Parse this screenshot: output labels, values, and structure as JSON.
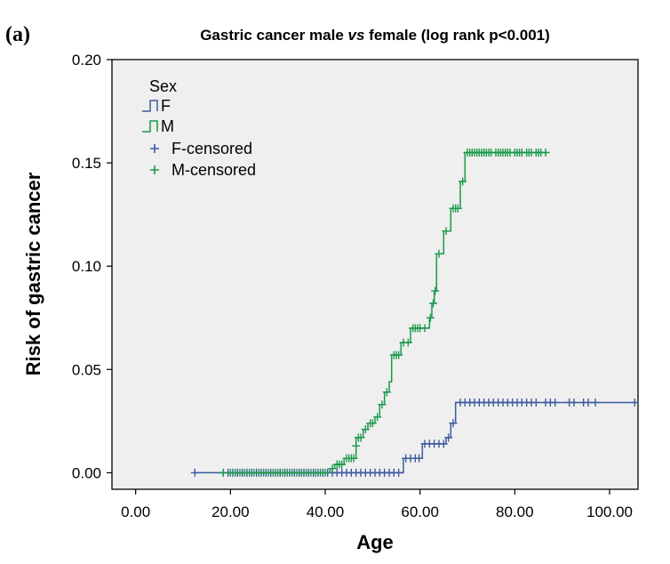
{
  "panel_label": "(a)",
  "chart_data": {
    "type": "line",
    "title": "Gastric cancer male vs female (log rank p<0.001)",
    "title_parts": {
      "pre": "Gastric cancer male ",
      "italic": "vs",
      "post": " female (log rank p<0.001)"
    },
    "xlabel": "Age",
    "ylabel": "Risk of gastric cancer",
    "xlim": [
      -5,
      106
    ],
    "ylim": [
      -0.008,
      0.2
    ],
    "xticks": [
      0,
      20,
      40,
      60,
      80,
      100
    ],
    "xtick_labels": [
      "0.00",
      "20.00",
      "40.00",
      "60.00",
      "80.00",
      "100.00"
    ],
    "yticks": [
      0,
      0.05,
      0.1,
      0.15,
      0.2
    ],
    "ytick_labels": [
      "0.00",
      "0.05",
      "0.10",
      "0.15",
      "0.20"
    ],
    "grid": false,
    "legend": {
      "title": "Sex",
      "position": "top-left",
      "entries": [
        "F",
        "M",
        "F-censored",
        "M-censored"
      ]
    },
    "series": [
      {
        "name": "F",
        "color": "#3b5aa0",
        "step_points": [
          [
            12.5,
            0.0
          ],
          [
            56.5,
            0.0
          ],
          [
            56.5,
            0.007
          ],
          [
            60.5,
            0.007
          ],
          [
            60.5,
            0.014
          ],
          [
            65.5,
            0.014
          ],
          [
            65.5,
            0.017
          ],
          [
            66.5,
            0.017
          ],
          [
            66.5,
            0.024
          ],
          [
            67.5,
            0.024
          ],
          [
            67.5,
            0.034
          ],
          [
            106,
            0.034
          ]
        ],
        "censored": [
          [
            12.5,
            0.0
          ],
          [
            18.5,
            0.0
          ],
          [
            19.5,
            0.0
          ],
          [
            20.5,
            0.0
          ],
          [
            21.5,
            0.0
          ],
          [
            22.5,
            0.0
          ],
          [
            23.5,
            0.0
          ],
          [
            24.5,
            0.0
          ],
          [
            25.5,
            0.0
          ],
          [
            26.5,
            0.0
          ],
          [
            27.5,
            0.0
          ],
          [
            28.5,
            0.0
          ],
          [
            29.5,
            0.0
          ],
          [
            30.5,
            0.0
          ],
          [
            31.5,
            0.0
          ],
          [
            32.5,
            0.0
          ],
          [
            33.5,
            0.0
          ],
          [
            34.5,
            0.0
          ],
          [
            35.5,
            0.0
          ],
          [
            36.5,
            0.0
          ],
          [
            37.5,
            0.0
          ],
          [
            38.5,
            0.0
          ],
          [
            39.5,
            0.0
          ],
          [
            40.5,
            0.0
          ],
          [
            41.5,
            0.0
          ],
          [
            42.5,
            0.0
          ],
          [
            43.5,
            0.0
          ],
          [
            44.5,
            0.0
          ],
          [
            45.5,
            0.0
          ],
          [
            46.5,
            0.0
          ],
          [
            47.5,
            0.0
          ],
          [
            48.5,
            0.0
          ],
          [
            49.5,
            0.0
          ],
          [
            50.5,
            0.0
          ],
          [
            51.5,
            0.0
          ],
          [
            52.5,
            0.0
          ],
          [
            53.5,
            0.0
          ],
          [
            54.5,
            0.0
          ],
          [
            55.5,
            0.0
          ],
          [
            57.0,
            0.007
          ],
          [
            58.0,
            0.007
          ],
          [
            59.0,
            0.007
          ],
          [
            59.8,
            0.007
          ],
          [
            61.0,
            0.014
          ],
          [
            62.0,
            0.014
          ],
          [
            63.0,
            0.014
          ],
          [
            64.0,
            0.014
          ],
          [
            65.0,
            0.014
          ],
          [
            66.0,
            0.017
          ],
          [
            67.0,
            0.024
          ],
          [
            68.5,
            0.034
          ],
          [
            69.5,
            0.034
          ],
          [
            70.5,
            0.034
          ],
          [
            71.5,
            0.034
          ],
          [
            72.5,
            0.034
          ],
          [
            73.5,
            0.034
          ],
          [
            74.5,
            0.034
          ],
          [
            75.5,
            0.034
          ],
          [
            76.5,
            0.034
          ],
          [
            77.5,
            0.034
          ],
          [
            78.5,
            0.034
          ],
          [
            79.5,
            0.034
          ],
          [
            80.5,
            0.034
          ],
          [
            81.5,
            0.034
          ],
          [
            82.5,
            0.034
          ],
          [
            83.5,
            0.034
          ],
          [
            84.5,
            0.034
          ],
          [
            86.5,
            0.034
          ],
          [
            87.5,
            0.034
          ],
          [
            88.5,
            0.034
          ],
          [
            91.5,
            0.034
          ],
          [
            92.5,
            0.034
          ],
          [
            94.5,
            0.034
          ],
          [
            95.5,
            0.034
          ],
          [
            97.0,
            0.034
          ],
          [
            105.3,
            0.034
          ]
        ]
      },
      {
        "name": "M",
        "color": "#1a9a4a",
        "step_points": [
          [
            18.5,
            0.0
          ],
          [
            41.0,
            0.0
          ],
          [
            41.0,
            0.002
          ],
          [
            42.0,
            0.002
          ],
          [
            42.0,
            0.004
          ],
          [
            44.0,
            0.004
          ],
          [
            44.0,
            0.007
          ],
          [
            46.5,
            0.007
          ],
          [
            46.5,
            0.017
          ],
          [
            48.0,
            0.017
          ],
          [
            48.0,
            0.021
          ],
          [
            49.0,
            0.021
          ],
          [
            49.0,
            0.024
          ],
          [
            50.5,
            0.024
          ],
          [
            50.5,
            0.027
          ],
          [
            51.5,
            0.027
          ],
          [
            51.5,
            0.033
          ],
          [
            52.5,
            0.033
          ],
          [
            52.5,
            0.039
          ],
          [
            53.5,
            0.039
          ],
          [
            53.5,
            0.044
          ],
          [
            54.0,
            0.044
          ],
          [
            54.0,
            0.057
          ],
          [
            56.0,
            0.057
          ],
          [
            56.0,
            0.063
          ],
          [
            58.0,
            0.063
          ],
          [
            58.0,
            0.07
          ],
          [
            62.0,
            0.07
          ],
          [
            62.0,
            0.075
          ],
          [
            62.5,
            0.075
          ],
          [
            62.5,
            0.082
          ],
          [
            63.0,
            0.082
          ],
          [
            63.0,
            0.088
          ],
          [
            63.5,
            0.088
          ],
          [
            63.5,
            0.106
          ],
          [
            65.0,
            0.106
          ],
          [
            65.0,
            0.117
          ],
          [
            66.5,
            0.117
          ],
          [
            66.5,
            0.128
          ],
          [
            68.5,
            0.128
          ],
          [
            68.5,
            0.141
          ],
          [
            69.5,
            0.141
          ],
          [
            69.5,
            0.155
          ],
          [
            87,
            0.155
          ]
        ],
        "censored": [
          [
            18.5,
            0.0
          ],
          [
            20.0,
            0.0
          ],
          [
            21.0,
            0.0
          ],
          [
            22.0,
            0.0
          ],
          [
            23.0,
            0.0
          ],
          [
            24.0,
            0.0
          ],
          [
            25.0,
            0.0
          ],
          [
            26.0,
            0.0
          ],
          [
            27.0,
            0.0
          ],
          [
            28.0,
            0.0
          ],
          [
            29.0,
            0.0
          ],
          [
            30.0,
            0.0
          ],
          [
            31.0,
            0.0
          ],
          [
            32.0,
            0.0
          ],
          [
            33.0,
            0.0
          ],
          [
            34.0,
            0.0
          ],
          [
            35.0,
            0.0
          ],
          [
            36.0,
            0.0
          ],
          [
            37.0,
            0.0
          ],
          [
            38.0,
            0.0
          ],
          [
            39.0,
            0.0
          ],
          [
            40.0,
            0.0
          ],
          [
            41.5,
            0.002
          ],
          [
            42.5,
            0.004
          ],
          [
            43.0,
            0.004
          ],
          [
            43.5,
            0.004
          ],
          [
            44.5,
            0.007
          ],
          [
            45.0,
            0.007
          ],
          [
            45.5,
            0.007
          ],
          [
            46.0,
            0.007
          ],
          [
            46.5,
            0.013
          ],
          [
            47.0,
            0.017
          ],
          [
            47.5,
            0.017
          ],
          [
            48.5,
            0.021
          ],
          [
            49.5,
            0.024
          ],
          [
            50.0,
            0.024
          ],
          [
            51.0,
            0.027
          ],
          [
            52.0,
            0.033
          ],
          [
            53.0,
            0.039
          ],
          [
            54.5,
            0.057
          ],
          [
            55.0,
            0.057
          ],
          [
            55.5,
            0.057
          ],
          [
            56.5,
            0.063
          ],
          [
            57.5,
            0.063
          ],
          [
            58.5,
            0.07
          ],
          [
            59.0,
            0.07
          ],
          [
            59.5,
            0.07
          ],
          [
            60.0,
            0.07
          ],
          [
            61.0,
            0.07
          ],
          [
            62.2,
            0.075
          ],
          [
            62.8,
            0.082
          ],
          [
            63.2,
            0.088
          ],
          [
            64.0,
            0.106
          ],
          [
            65.5,
            0.117
          ],
          [
            67.0,
            0.128
          ],
          [
            67.5,
            0.128
          ],
          [
            68.0,
            0.128
          ],
          [
            69.0,
            0.141
          ],
          [
            70.0,
            0.155
          ],
          [
            70.5,
            0.155
          ],
          [
            71.0,
            0.155
          ],
          [
            71.5,
            0.155
          ],
          [
            72.0,
            0.155
          ],
          [
            72.5,
            0.155
          ],
          [
            73.0,
            0.155
          ],
          [
            73.5,
            0.155
          ],
          [
            74.0,
            0.155
          ],
          [
            74.5,
            0.155
          ],
          [
            75.0,
            0.155
          ],
          [
            76.0,
            0.155
          ],
          [
            76.5,
            0.155
          ],
          [
            77.0,
            0.155
          ],
          [
            77.5,
            0.155
          ],
          [
            78.0,
            0.155
          ],
          [
            78.5,
            0.155
          ],
          [
            79.0,
            0.155
          ],
          [
            80.0,
            0.155
          ],
          [
            80.5,
            0.155
          ],
          [
            81.0,
            0.155
          ],
          [
            81.5,
            0.155
          ],
          [
            82.5,
            0.155
          ],
          [
            83.0,
            0.155
          ],
          [
            83.5,
            0.155
          ],
          [
            84.5,
            0.155
          ],
          [
            85.0,
            0.155
          ],
          [
            85.5,
            0.155
          ],
          [
            86.5,
            0.155
          ]
        ]
      }
    ]
  }
}
